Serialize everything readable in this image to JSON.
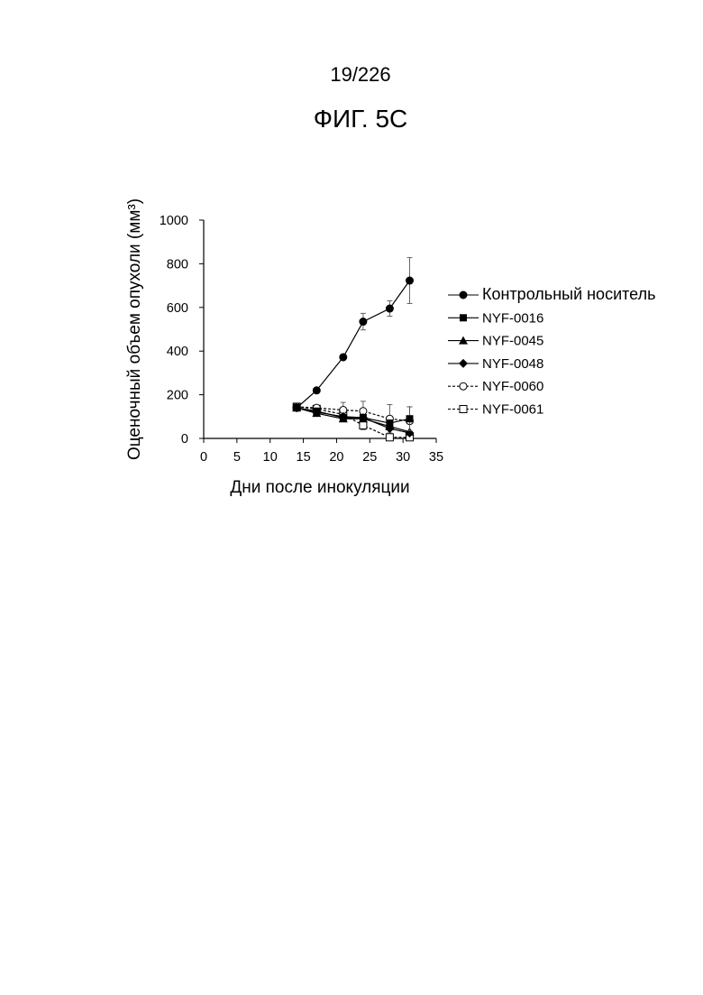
{
  "header": {
    "page_number": "19/226",
    "figure_title": "ФИГ. 5С"
  },
  "chart_data": {
    "type": "line",
    "xlabel": "Дни после инокуляции",
    "ylabel": "Оценочный объем опухоли (мм³)",
    "xlim": [
      0,
      35
    ],
    "ylim": [
      0,
      1000
    ],
    "xticks": [
      "0",
      "5",
      "10",
      "15",
      "20",
      "25",
      "30",
      "35"
    ],
    "yticks": [
      "0",
      "200",
      "400",
      "600",
      "800",
      "1000"
    ],
    "grid": false,
    "legend_position": "right",
    "series": [
      {
        "name": "Контрольный носитель",
        "marker": "filled-circle",
        "line": "solid",
        "x": [
          14,
          17,
          21,
          24,
          28,
          31
        ],
        "y": [
          140,
          220,
          372,
          535,
          595,
          723
        ],
        "err": [
          0,
          0,
          0,
          38,
          35,
          105
        ]
      },
      {
        "name": "NYF-0016",
        "marker": "filled-square",
        "line": "solid",
        "x": [
          14,
          17,
          21,
          24,
          28,
          31
        ],
        "y": [
          140,
          125,
          95,
          95,
          70,
          90
        ],
        "err": [
          0,
          0,
          0,
          0,
          0,
          55
        ]
      },
      {
        "name": "NYF-0045",
        "marker": "filled-triangle",
        "line": "solid",
        "x": [
          14,
          17,
          21,
          24,
          28,
          31
        ],
        "y": [
          140,
          115,
          90,
          90,
          55,
          30
        ],
        "err": [
          0,
          0,
          0,
          0,
          0,
          0
        ]
      },
      {
        "name": "NYF-0048",
        "marker": "filled-diamond",
        "line": "solid",
        "x": [
          14,
          17,
          21,
          24,
          28,
          31
        ],
        "y": [
          140,
          120,
          100,
          95,
          45,
          25
        ],
        "err": [
          0,
          0,
          0,
          0,
          0,
          0
        ]
      },
      {
        "name": "NYF-0060",
        "marker": "open-circle",
        "line": "dashed",
        "x": [
          14,
          17,
          21,
          24,
          28,
          31
        ],
        "y": [
          145,
          140,
          130,
          125,
          90,
          80
        ],
        "err": [
          0,
          0,
          35,
          45,
          65,
          65
        ]
      },
      {
        "name": "NYF-0061",
        "marker": "open-square",
        "line": "dashed",
        "x": [
          14,
          17,
          21,
          24,
          28,
          31
        ],
        "y": [
          145,
          135,
          110,
          60,
          5,
          5
        ],
        "err": [
          0,
          0,
          0,
          20,
          0,
          0
        ]
      }
    ]
  }
}
